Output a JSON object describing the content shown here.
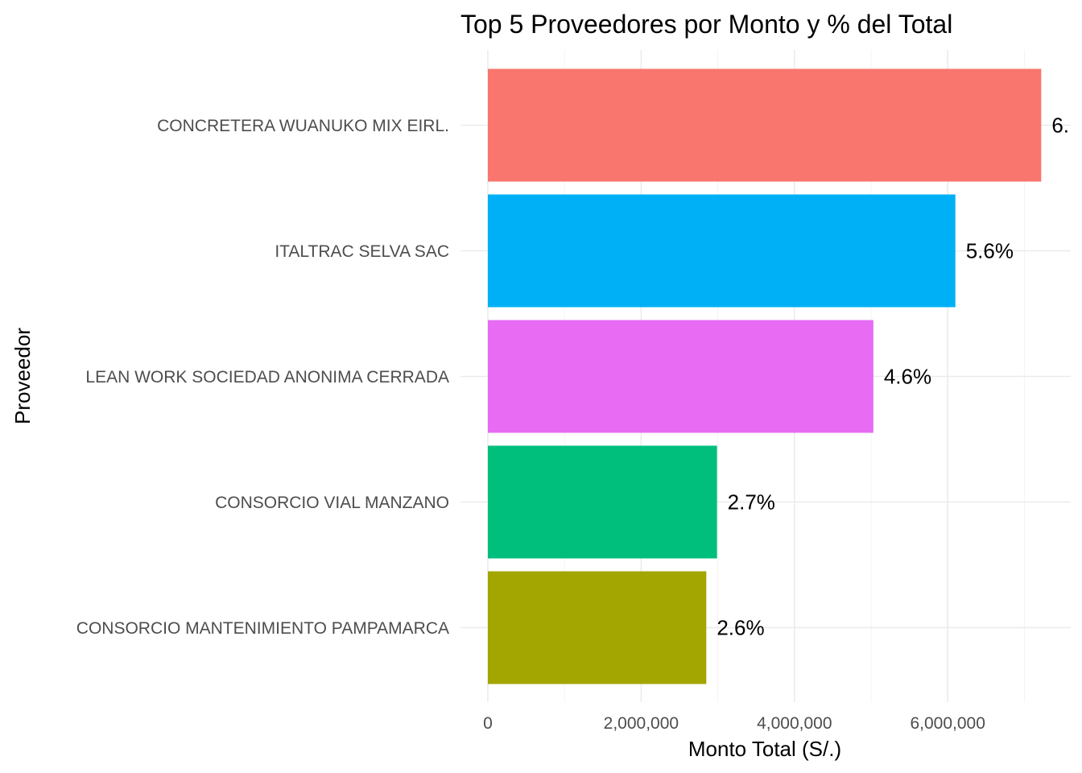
{
  "chart_data": {
    "type": "bar",
    "orientation": "horizontal",
    "title": "Top 5 Proveedores por Monto y % del Total",
    "xlabel": "Monto Total (S/.)",
    "ylabel": "Proveedor",
    "xlim": [
      0,
      7600000
    ],
    "x_ticks": [
      0,
      2000000,
      4000000,
      6000000
    ],
    "x_tick_labels": [
      "0",
      "2,000,000",
      "4,000,000",
      "6,000,000"
    ],
    "grid": true,
    "legend": "none",
    "categories": [
      "CONCRETERA WUANUKO MIX EIRL.",
      "ITALTRAC SELVA SAC",
      "LEAN WORK SOCIEDAD ANONIMA CERRADA",
      "CONSORCIO VIAL MANZANO",
      "CONSORCIO MANTENIMIENTO PAMPAMARCA"
    ],
    "values": [
      7220000,
      6100000,
      5030000,
      2990000,
      2850000
    ],
    "labels": [
      "6.",
      "5.6%",
      "4.6%",
      "2.7%",
      "2.6%"
    ],
    "colors": [
      "#F8766D",
      "#00B0F6",
      "#E76BF3",
      "#00BF7D",
      "#A3A500"
    ]
  }
}
